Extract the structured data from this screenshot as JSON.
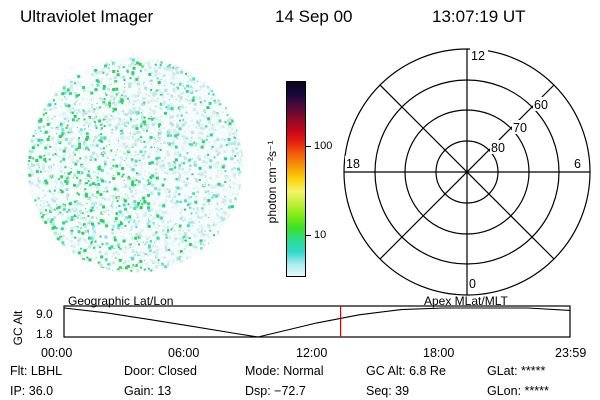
{
  "header": {
    "instrument": "Ultraviolet Imager",
    "date": "14 Sep 00",
    "time": "13:07:19 UT"
  },
  "colorbar": {
    "unit_label": "photon cm⁻²s⁻¹",
    "tick_labels": [
      "100",
      "10"
    ],
    "colors_top_to_bottom": [
      "#0c0318",
      "#160840",
      "#4e0a3a",
      "#8a0a2a",
      "#c4061a",
      "#e8220e",
      "#f4600a",
      "#f89a08",
      "#fcd208",
      "#f4f468",
      "#c0f038",
      "#80ec14",
      "#3ee028",
      "#2cdc8c",
      "#30d8cc",
      "#a8ecf0",
      "#e8f8f8"
    ]
  },
  "polar_plot": {
    "mlt_labels": {
      "top": "12",
      "right": "6",
      "bottom": "0",
      "left": "18"
    },
    "lat_labels": [
      "60",
      "70",
      "80"
    ]
  },
  "chart_data": {
    "type": "line",
    "title": "",
    "left_label": "Geographic Lat/Lon",
    "right_label": "Apex  MLat/MLT",
    "ylabel": "GC Alt",
    "y_ticks": [
      "9.0",
      "1.8"
    ],
    "ylim": [
      1.8,
      9.0
    ],
    "x_ticks": [
      "00:00",
      "06:00",
      "12:00",
      "18:00",
      "23:59"
    ],
    "xlim_hours": [
      0,
      24
    ],
    "current_time_hours": 13.12,
    "series": [
      {
        "x_hours": [
          0,
          2,
          4,
          6,
          8,
          9.2,
          10,
          12,
          14,
          16,
          18,
          20,
          22,
          24
        ],
        "values": [
          9.0,
          7.8,
          6.2,
          4.5,
          2.8,
          1.8,
          2.8,
          5.3,
          7.3,
          8.6,
          9.2,
          9.4,
          9.0,
          8.4
        ]
      }
    ]
  },
  "info": {
    "row1": {
      "filter": "Flt: LBHL",
      "door": "Door: Closed",
      "mode": "Mode: Normal",
      "gc_alt": "GC Alt: 6.8 Re",
      "glat": "GLat: *****"
    },
    "row2": {
      "ip": "IP: 36.0",
      "gain": "Gain: 13",
      "dsp": "Dsp:  −72.7",
      "seq": "Seq: 39",
      "glon": "GLon: *****"
    }
  }
}
